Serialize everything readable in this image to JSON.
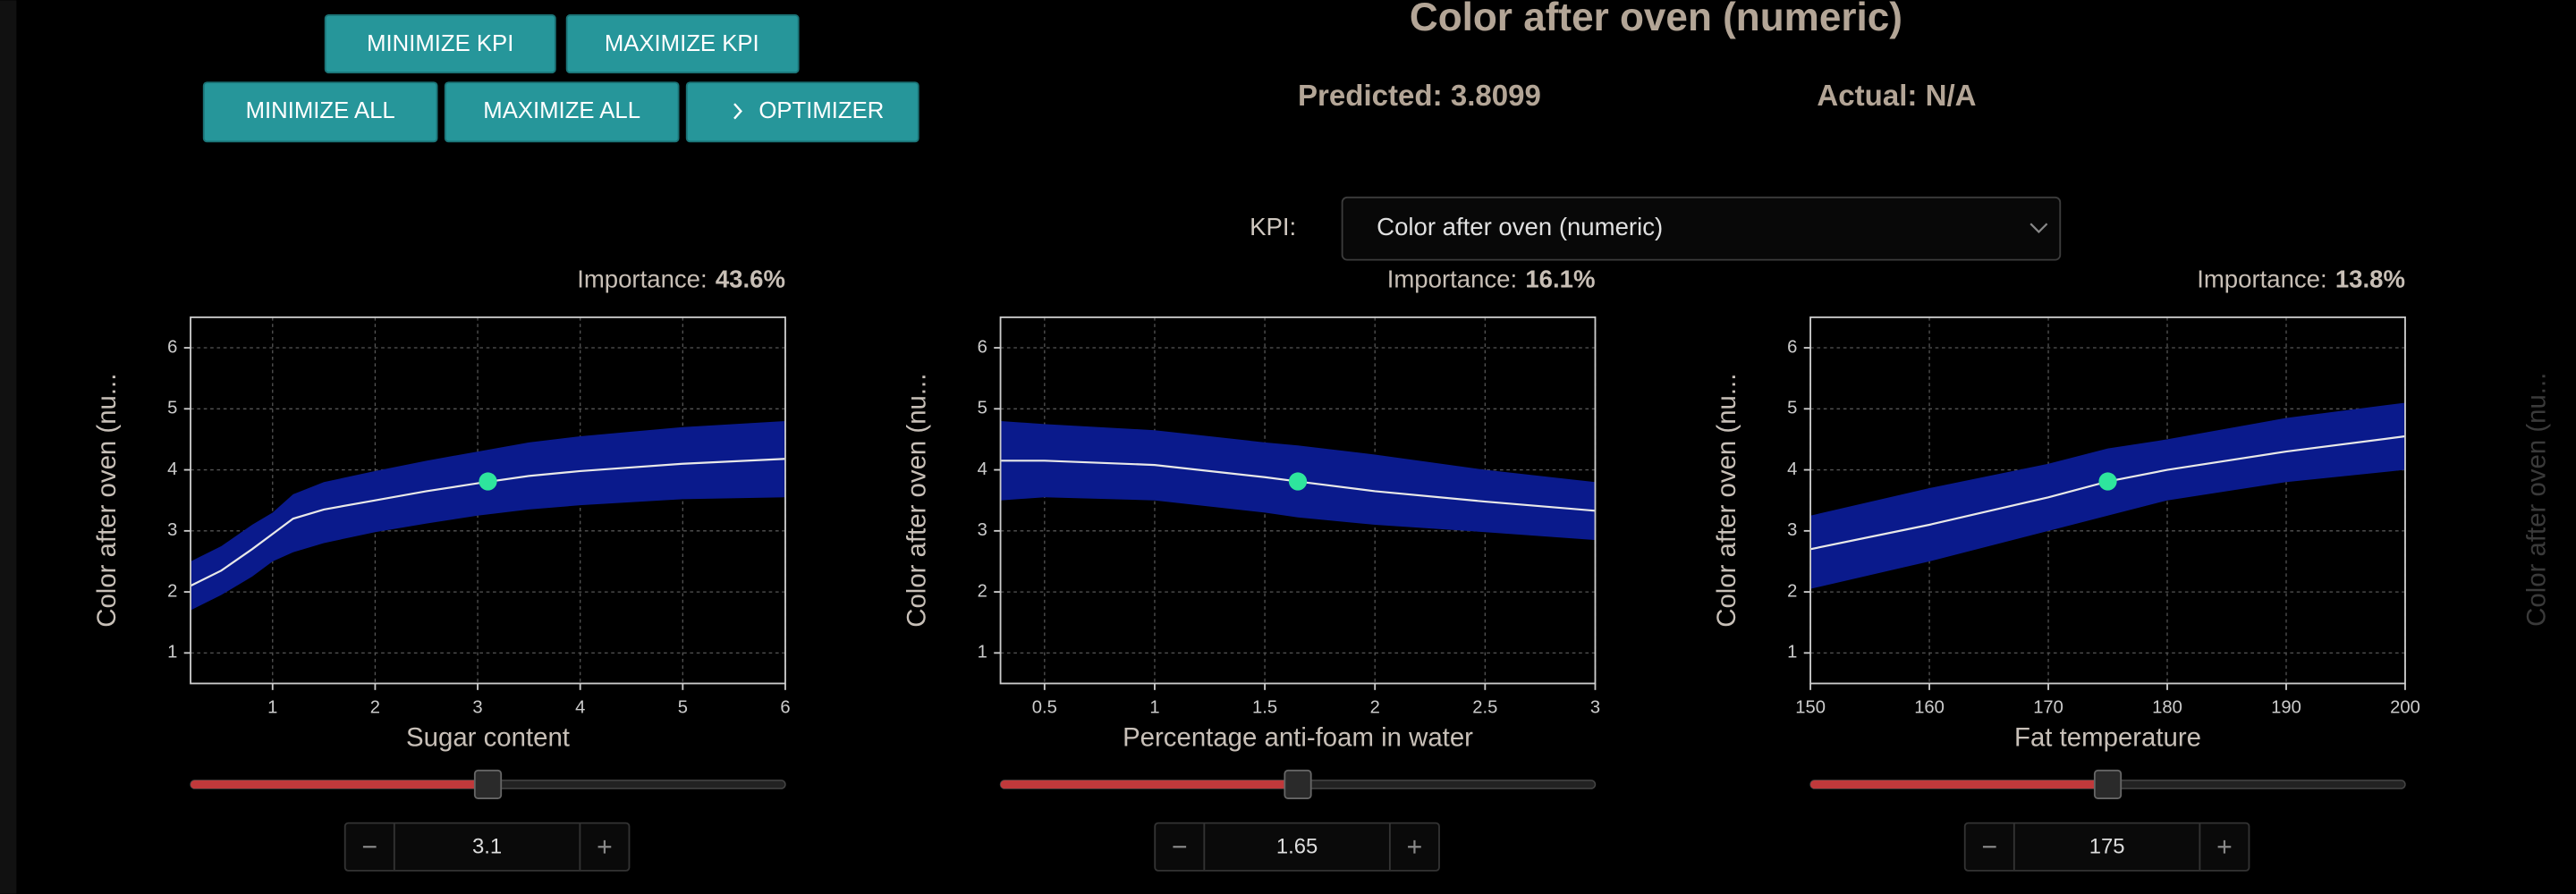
{
  "buttons": [
    "MINIMIZE KPI",
    "MAXIMIZE KPI",
    "MINIMIZE ALL",
    "MAXIMIZE ALL",
    "OPTIMIZER"
  ],
  "header": {
    "title": "Color after oven (numeric)",
    "predicted": {
      "label": "Predicted:",
      "value": 3.8099
    },
    "actual": {
      "label": "Actual:",
      "value": "N/A"
    }
  },
  "kpi": {
    "label": "KPI:",
    "selected": "Color after oven (numeric)"
  },
  "offscreen_ylabel": "Color after oven (nu...",
  "chart_data": [
    {
      "type": "line",
      "importance": {
        "label": "Importance:",
        "value": "43.6%"
      },
      "ylabel": "Color after oven (nu...",
      "xlabel": "Sugar content",
      "xlim": [
        0.2,
        6
      ],
      "xticks": [
        1,
        2,
        3,
        4,
        5,
        6
      ],
      "ylim": [
        0.5,
        6.5
      ],
      "yticks": [
        1,
        2,
        3,
        4,
        5,
        6
      ],
      "grid": true,
      "x": [
        0.2,
        0.5,
        0.8,
        1,
        1.2,
        1.5,
        2,
        2.5,
        3,
        3.5,
        4,
        5,
        6
      ],
      "mean": [
        2.1,
        2.35,
        2.7,
        2.95,
        3.2,
        3.35,
        3.5,
        3.65,
        3.78,
        3.9,
        3.98,
        4.1,
        4.18
      ],
      "lower": [
        1.7,
        1.95,
        2.25,
        2.5,
        2.65,
        2.8,
        2.98,
        3.12,
        3.25,
        3.35,
        3.42,
        3.52,
        3.55
      ],
      "upper": [
        2.5,
        2.75,
        3.1,
        3.3,
        3.6,
        3.8,
        3.98,
        4.15,
        4.3,
        4.45,
        4.55,
        4.7,
        4.8
      ],
      "band_color": "#0a1a8c",
      "line_color": "#e8e8e8",
      "marker_color": "#2ee59d",
      "current": 3.1
    },
    {
      "type": "line",
      "importance": {
        "label": "Importance:",
        "value": "16.1%"
      },
      "ylabel": "Color after oven (nu...",
      "xlabel": "Percentage anti-foam in water",
      "xlim": [
        0.3,
        3
      ],
      "xticks": [
        0.5,
        1,
        1.5,
        2,
        2.5,
        3
      ],
      "ylim": [
        0.5,
        6.5
      ],
      "yticks": [
        1,
        2,
        3,
        4,
        5,
        6
      ],
      "grid": true,
      "x": [
        0.3,
        0.5,
        1,
        1.5,
        1.65,
        2,
        2.5,
        3
      ],
      "mean": [
        4.15,
        4.15,
        4.08,
        3.88,
        3.81,
        3.65,
        3.48,
        3.33
      ],
      "lower": [
        3.5,
        3.55,
        3.5,
        3.3,
        3.22,
        3.1,
        2.98,
        2.85
      ],
      "upper": [
        4.8,
        4.75,
        4.65,
        4.45,
        4.4,
        4.25,
        4.0,
        3.8
      ],
      "band_color": "#0a1a8c",
      "line_color": "#e8e8e8",
      "marker_color": "#2ee59d",
      "current": 1.65
    },
    {
      "type": "line",
      "importance": {
        "label": "Importance:",
        "value": "13.8%"
      },
      "ylabel": "Color after oven (nu...",
      "xlabel": "Fat temperature",
      "xlim": [
        150,
        200
      ],
      "xticks": [
        150,
        160,
        170,
        180,
        190,
        200
      ],
      "ylim": [
        0.5,
        6.5
      ],
      "yticks": [
        1,
        2,
        3,
        4,
        5,
        6
      ],
      "grid": true,
      "x": [
        150,
        160,
        170,
        175,
        180,
        190,
        200
      ],
      "mean": [
        2.7,
        3.1,
        3.55,
        3.81,
        4.0,
        4.3,
        4.55
      ],
      "lower": [
        2.05,
        2.5,
        3.0,
        3.25,
        3.5,
        3.8,
        4.0
      ],
      "upper": [
        3.25,
        3.7,
        4.1,
        4.35,
        4.5,
        4.85,
        5.1
      ],
      "band_color": "#0a1a8c",
      "line_color": "#e8e8e8",
      "marker_color": "#2ee59d",
      "current": 175
    }
  ]
}
